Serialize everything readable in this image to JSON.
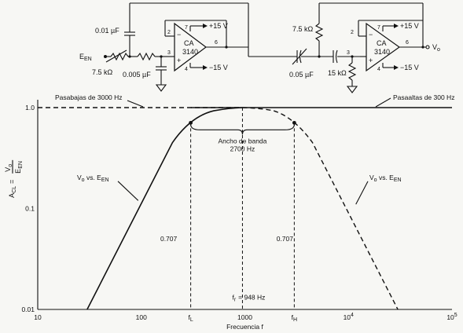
{
  "circuit": {
    "c1_label": "0.01 µF",
    "c2_label": "0.005 µF",
    "r1_label": "7.5 kΩ",
    "r2_label": "7.5 kΩ",
    "c3_label": "0.05 µF",
    "r3_label": "15 kΩ",
    "input_label": "E",
    "input_sub": "EN",
    "opamp1_name": "CA",
    "opamp1_num": "3140",
    "opamp2_name": "CA",
    "opamp2_num": "3140",
    "opamp_minus": "−",
    "opamp_plus": "+",
    "pin2": "2",
    "pin3": "3",
    "pin4": "4",
    "pin6": "6",
    "pin7": "7",
    "vplus": "+15 V",
    "vminus": "−15 V",
    "output_label": "V",
    "output_sub": "o"
  },
  "chart_data": {
    "type": "line",
    "xscale": "log",
    "yscale": "log",
    "xlim": [
      10,
      100000
    ],
    "ylim": [
      0.01,
      1.0
    ],
    "xticks": [
      "10",
      "100",
      "f",
      "1000",
      "f",
      "10",
      "10"
    ],
    "xticks_sub": [
      "",
      "",
      "L",
      "",
      "H",
      "",
      ""
    ],
    "xticks_sup": [
      "",
      "",
      "",
      "",
      "",
      "4",
      "5"
    ],
    "yticks": [
      "1.0",
      "0.1",
      "0.01"
    ],
    "ylabel_main": "A",
    "ylabel_sub": "CL",
    "ylabel_eq": "=",
    "ylabel_num": "V",
    "ylabel_num_sub": "o",
    "ylabel_den": "E",
    "ylabel_den_sub": "EN",
    "xlabel": "Frecuencia f",
    "annotations": {
      "lowpass": "Pasabajas de 3000 Hz",
      "highpass": "Pasaaltas de 300 Hz",
      "bandwidth_1": "Ancho de banda",
      "bandwidth_2": "2700 Hz",
      "left_curve": "V",
      "left_curve_sub": "o",
      "left_curve_rest": " vs. E",
      "left_curve_rest_sub": "EN",
      "right_curve": "V",
      "right_curve_sub": "o",
      "right_curve_rest": " vs. E",
      "right_curve_rest_sub": "EN",
      "level_left": "0.707",
      "level_right": "0.707",
      "center_f": "f",
      "center_f_sub": "r",
      "center_f_val": "= 948 Hz"
    },
    "series": [
      {
        "x": [
          30,
          300,
          948
        ],
        "y": [
          0.01,
          0.707,
          1.0
        ]
      },
      {
        "x": [
          948,
          3000,
          30000
        ],
        "y": [
          1.0,
          0.707,
          0.01
        ]
      },
      {
        "x": [
          300,
          100000
        ],
        "y": [
          1.0,
          1.0
        ]
      },
      {
        "x": [
          10,
          948
        ],
        "y": [
          1.0,
          1.0
        ]
      }
    ],
    "markers": [
      {
        "x": 300,
        "y": 0.707
      },
      {
        "x": 3000,
        "y": 0.707
      }
    ],
    "grid": false
  }
}
